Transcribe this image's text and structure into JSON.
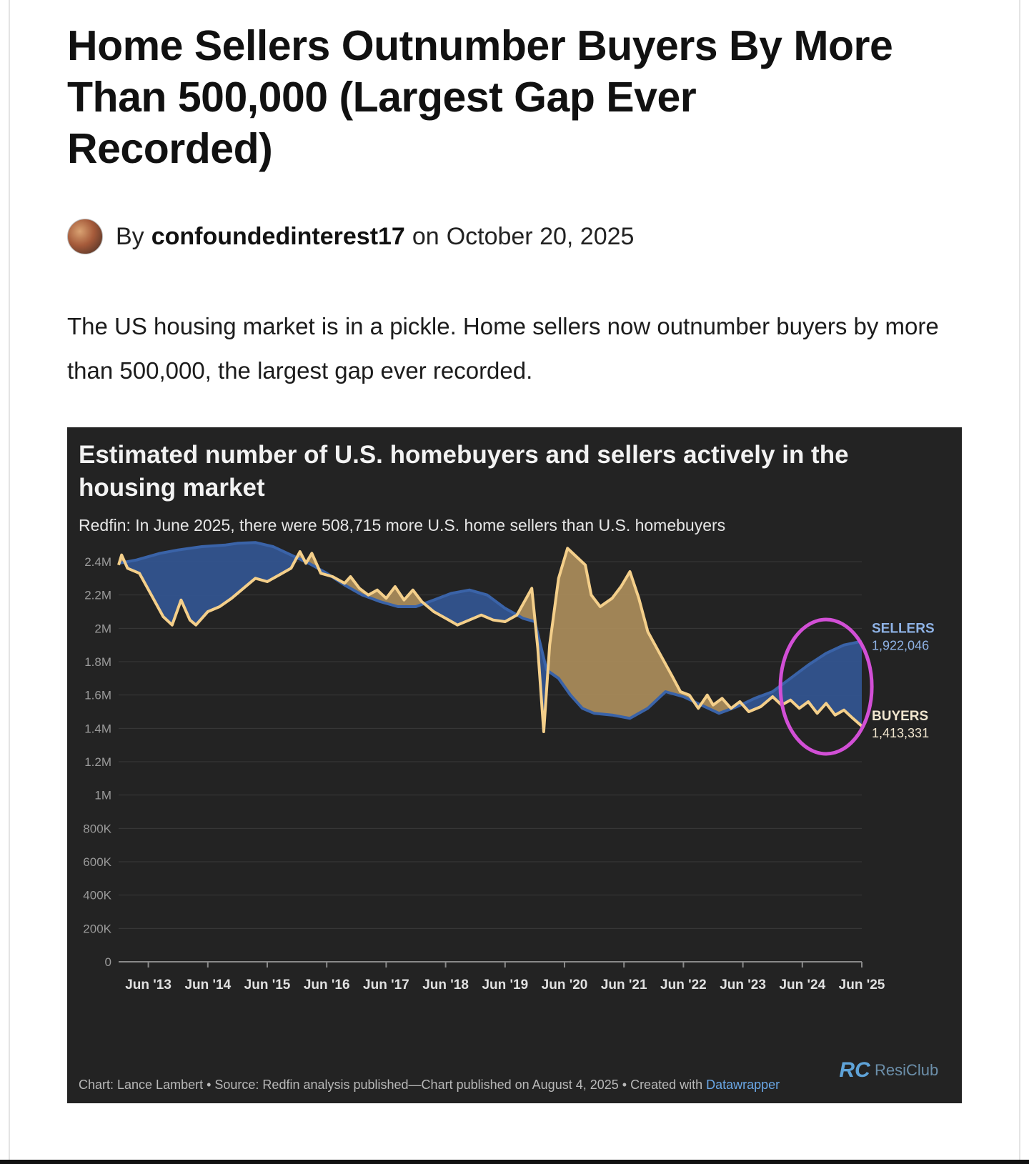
{
  "article": {
    "title": "Home Sellers Outnumber Buyers By More Than 500,000 (Largest Gap Ever Recorded)",
    "byline_prefix": "By",
    "author": "confoundedinterest17",
    "byline_on": "on",
    "date": "October 20, 2025",
    "lede": "The US housing market is in a pickle. Home sellers now outnumber buyers by more than 500,000, the largest gap ever recorded."
  },
  "chart": {
    "footer_text": "Chart: Lance Lambert • Source: Redfin analysis published—Chart published on August 4, 2025 • Created with ",
    "footer_link": "Datawrapper",
    "logo_mark": "RC",
    "logo_text": "ResiClub"
  },
  "colors": {
    "background": "#232323",
    "sellers": "#3a63a8",
    "buyers": "#f4cf8a",
    "buyers_gap_fill": "#a88a5a",
    "sellers_gap_fill": "#33548f",
    "highlight_circle": "#d24fd6",
    "grid": "#3a3a3a"
  },
  "chart_data": {
    "type": "area",
    "title": "Estimated number of U.S. homebuyers and sellers actively in the housing market",
    "subtitle": "Redfin: In June 2025, there were 508,715 more U.S. home sellers than U.S. homebuyers",
    "ylim": [
      0,
      2400000
    ],
    "yticks": [
      {
        "value": 2400000,
        "label": "2.4M"
      },
      {
        "value": 2200000,
        "label": "2.2M"
      },
      {
        "value": 2000000,
        "label": "2M"
      },
      {
        "value": 1800000,
        "label": "1.8M"
      },
      {
        "value": 1600000,
        "label": "1.6M"
      },
      {
        "value": 1400000,
        "label": "1.4M"
      },
      {
        "value": 1200000,
        "label": "1.2M"
      },
      {
        "value": 1000000,
        "label": "1M"
      },
      {
        "value": 800000,
        "label": "800K"
      },
      {
        "value": 600000,
        "label": "600K"
      },
      {
        "value": 400000,
        "label": "400K"
      },
      {
        "value": 200000,
        "label": "200K"
      },
      {
        "value": 0,
        "label": "0"
      }
    ],
    "xlim": [
      2013.0,
      2025.5
    ],
    "xticks": [
      {
        "value": 2013.5,
        "label": "Jun '13"
      },
      {
        "value": 2014.5,
        "label": "Jun '14"
      },
      {
        "value": 2015.5,
        "label": "Jun '15"
      },
      {
        "value": 2016.5,
        "label": "Jun '16"
      },
      {
        "value": 2017.5,
        "label": "Jun '17"
      },
      {
        "value": 2018.5,
        "label": "Jun '18"
      },
      {
        "value": 2019.5,
        "label": "Jun '19"
      },
      {
        "value": 2020.5,
        "label": "Jun '20"
      },
      {
        "value": 2021.5,
        "label": "Jun '21"
      },
      {
        "value": 2022.5,
        "label": "Jun '22"
      },
      {
        "value": 2023.5,
        "label": "Jun '23"
      },
      {
        "value": 2024.5,
        "label": "Jun '24"
      },
      {
        "value": 2025.5,
        "label": "Jun '25"
      }
    ],
    "grid": true,
    "series": [
      {
        "name": "SELLERS",
        "end_label": "1,922,046",
        "points": [
          [
            2013.0,
            2390000
          ],
          [
            2013.3,
            2410000
          ],
          [
            2013.7,
            2450000
          ],
          [
            2014.0,
            2470000
          ],
          [
            2014.4,
            2490000
          ],
          [
            2014.8,
            2500000
          ],
          [
            2015.0,
            2510000
          ],
          [
            2015.3,
            2515000
          ],
          [
            2015.6,
            2490000
          ],
          [
            2015.9,
            2440000
          ],
          [
            2016.2,
            2390000
          ],
          [
            2016.5,
            2330000
          ],
          [
            2016.8,
            2260000
          ],
          [
            2017.1,
            2200000
          ],
          [
            2017.4,
            2160000
          ],
          [
            2017.7,
            2130000
          ],
          [
            2018.0,
            2130000
          ],
          [
            2018.3,
            2170000
          ],
          [
            2018.6,
            2210000
          ],
          [
            2018.9,
            2230000
          ],
          [
            2019.2,
            2200000
          ],
          [
            2019.5,
            2120000
          ],
          [
            2019.8,
            2060000
          ],
          [
            2020.0,
            2040000
          ],
          [
            2020.2,
            1750000
          ],
          [
            2020.4,
            1700000
          ],
          [
            2020.6,
            1600000
          ],
          [
            2020.8,
            1520000
          ],
          [
            2021.0,
            1490000
          ],
          [
            2021.3,
            1480000
          ],
          [
            2021.6,
            1460000
          ],
          [
            2021.9,
            1520000
          ],
          [
            2022.2,
            1620000
          ],
          [
            2022.5,
            1590000
          ],
          [
            2022.8,
            1540000
          ],
          [
            2023.1,
            1490000
          ],
          [
            2023.4,
            1530000
          ],
          [
            2023.7,
            1580000
          ],
          [
            2024.0,
            1620000
          ],
          [
            2024.3,
            1700000
          ],
          [
            2024.6,
            1780000
          ],
          [
            2024.9,
            1850000
          ],
          [
            2025.2,
            1900000
          ],
          [
            2025.5,
            1922046
          ]
        ]
      },
      {
        "name": "BUYERS",
        "end_label": "1,413,331",
        "points": [
          [
            2013.0,
            2380000
          ],
          [
            2013.05,
            2440000
          ],
          [
            2013.15,
            2360000
          ],
          [
            2013.35,
            2330000
          ],
          [
            2013.55,
            2200000
          ],
          [
            2013.75,
            2070000
          ],
          [
            2013.9,
            2020000
          ],
          [
            2014.05,
            2170000
          ],
          [
            2014.2,
            2050000
          ],
          [
            2014.3,
            2020000
          ],
          [
            2014.5,
            2100000
          ],
          [
            2014.7,
            2130000
          ],
          [
            2014.9,
            2180000
          ],
          [
            2015.1,
            2240000
          ],
          [
            2015.3,
            2300000
          ],
          [
            2015.5,
            2280000
          ],
          [
            2015.7,
            2320000
          ],
          [
            2015.9,
            2360000
          ],
          [
            2016.05,
            2460000
          ],
          [
            2016.15,
            2390000
          ],
          [
            2016.25,
            2450000
          ],
          [
            2016.4,
            2330000
          ],
          [
            2016.6,
            2310000
          ],
          [
            2016.8,
            2270000
          ],
          [
            2016.9,
            2310000
          ],
          [
            2017.05,
            2240000
          ],
          [
            2017.2,
            2200000
          ],
          [
            2017.35,
            2230000
          ],
          [
            2017.5,
            2180000
          ],
          [
            2017.65,
            2250000
          ],
          [
            2017.8,
            2170000
          ],
          [
            2017.95,
            2230000
          ],
          [
            2018.1,
            2160000
          ],
          [
            2018.3,
            2100000
          ],
          [
            2018.5,
            2060000
          ],
          [
            2018.7,
            2020000
          ],
          [
            2018.9,
            2050000
          ],
          [
            2019.1,
            2080000
          ],
          [
            2019.3,
            2050000
          ],
          [
            2019.5,
            2040000
          ],
          [
            2019.7,
            2080000
          ],
          [
            2019.95,
            2240000
          ],
          [
            2020.05,
            1880000
          ],
          [
            2020.15,
            1380000
          ],
          [
            2020.25,
            1900000
          ],
          [
            2020.4,
            2300000
          ],
          [
            2020.55,
            2480000
          ],
          [
            2020.7,
            2430000
          ],
          [
            2020.85,
            2380000
          ],
          [
            2020.95,
            2200000
          ],
          [
            2021.1,
            2130000
          ],
          [
            2021.3,
            2180000
          ],
          [
            2021.45,
            2250000
          ],
          [
            2021.6,
            2340000
          ],
          [
            2021.75,
            2180000
          ],
          [
            2021.9,
            1980000
          ],
          [
            2022.1,
            1850000
          ],
          [
            2022.3,
            1720000
          ],
          [
            2022.45,
            1620000
          ],
          [
            2022.6,
            1600000
          ],
          [
            2022.75,
            1520000
          ],
          [
            2022.9,
            1600000
          ],
          [
            2023.0,
            1540000
          ],
          [
            2023.15,
            1580000
          ],
          [
            2023.3,
            1520000
          ],
          [
            2023.45,
            1560000
          ],
          [
            2023.6,
            1500000
          ],
          [
            2023.8,
            1530000
          ],
          [
            2024.0,
            1590000
          ],
          [
            2024.15,
            1540000
          ],
          [
            2024.3,
            1570000
          ],
          [
            2024.45,
            1520000
          ],
          [
            2024.6,
            1560000
          ],
          [
            2024.75,
            1490000
          ],
          [
            2024.9,
            1550000
          ],
          [
            2025.05,
            1480000
          ],
          [
            2025.2,
            1510000
          ],
          [
            2025.35,
            1460000
          ],
          [
            2025.5,
            1413331
          ]
        ]
      }
    ],
    "annotations": [
      {
        "type": "circle",
        "x": 2024.9,
        "y": 1650000,
        "note": "highlight of recent gap"
      }
    ]
  }
}
